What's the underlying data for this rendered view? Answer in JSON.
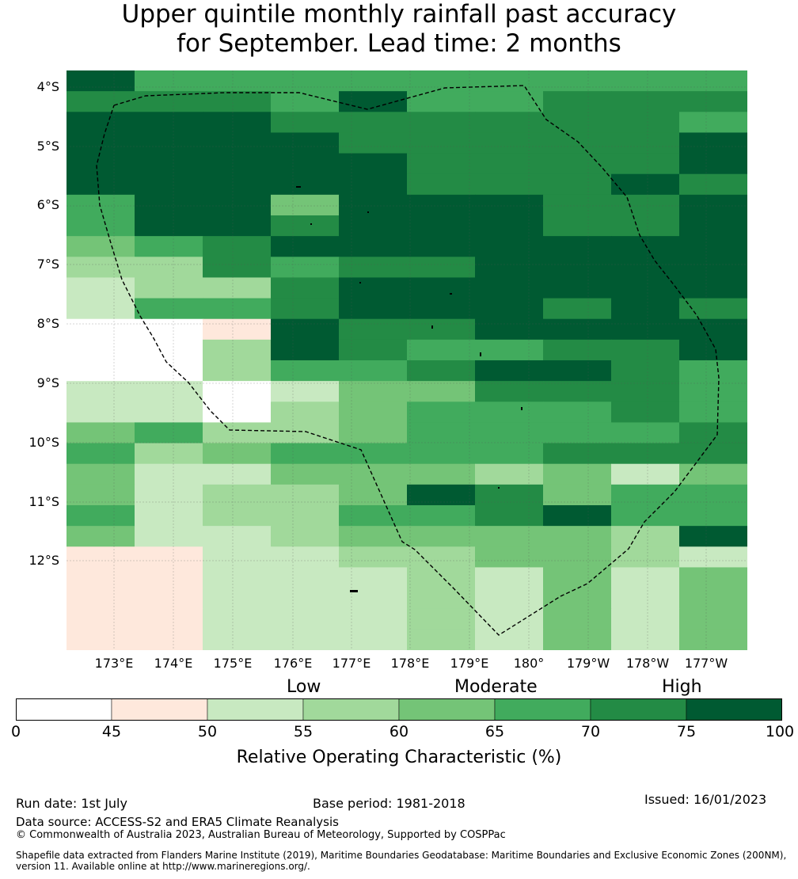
{
  "title_line1": "Upper quintile monthly rainfall past accuracy",
  "title_line2": "for September. Lead time: 2 months",
  "map": {
    "lat_labels": [
      "4°S",
      "5°S",
      "6°S",
      "7°S",
      "8°S",
      "9°S",
      "10°S",
      "11°S",
      "12°S"
    ],
    "lon_labels": [
      "173°E",
      "174°E",
      "175°E",
      "176°E",
      "177°E",
      "178°E",
      "179°E",
      "180°",
      "179°W",
      "178°W",
      "177°W"
    ],
    "category_colors": [
      "#ffffff",
      "#fee8dc",
      "#c8e9c1",
      "#a1d99b",
      "#74c477",
      "#41ab5d",
      "#238b45",
      "#005a32"
    ],
    "grid_rows": [
      "7555555555",
      "6665755666",
      "7776666665",
      "7777666667",
      "7777766667",
      "7777766676",
      "5774777667",
      "5776777667",
      "4567777777",
      "3365667777",
      "2336777777",
      "2556777676",
      "0017667777",
      "0037655667",
      "0035567765",
      "2202446665",
      "2203455565",
      "4533455556",
      "5345555666",
      "4224443424",
      "4233476455",
      "5233556755",
      "4223444437",
      "1122334432",
      "1122232424",
      "1122232424",
      "1122232424",
      "1122232424"
    ]
  },
  "colorbar": {
    "category_labels": [
      "Low",
      "Moderate",
      "High"
    ],
    "ticks": [
      "0",
      "45",
      "50",
      "55",
      "60",
      "65",
      "70",
      "75",
      "100"
    ],
    "colors": [
      "#ffffff",
      "#fee8dc",
      "#c8e9c1",
      "#a1d99b",
      "#74c477",
      "#41ab5d",
      "#238b45",
      "#005a32"
    ],
    "label": "Relative Operating Characteristic (%)"
  },
  "footer": {
    "run_date": "Run date: 1st July",
    "base_period": "Base period: 1981-2018",
    "issued": "Issued: 16/01/2023",
    "data_source": "Data source: ACCESS-S2 and ERA5 Climate Reanalysis",
    "copyright": "© Commonwealth of Australia 2023, Australian Bureau of Meteorology, Supported by COSPPac",
    "shapefile": "Shapefile data extracted from Flanders Marine Institute (2019), Maritime Boundaries Geodatabase: Maritime Boundaries and Exclusive Economic Zones (200NM), version 11. Available online at http://www.marineregions.org/."
  }
}
